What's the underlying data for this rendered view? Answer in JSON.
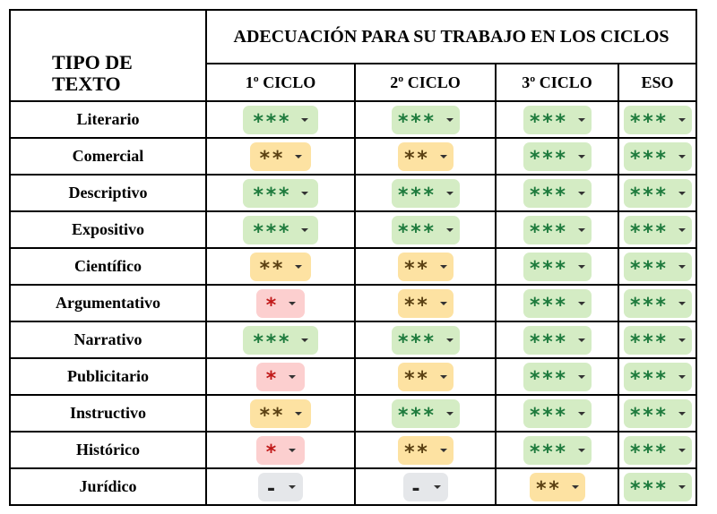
{
  "header": {
    "type_label_line1": "TIPO DE",
    "type_label_line2": "TEXTO",
    "group_title": "ADECUACIÓN PARA SU TRABAJO EN LOS CICLOS",
    "cycles": [
      "1º CICLO",
      "2º CICLO",
      "3º CICLO",
      "ESO"
    ]
  },
  "colors": {
    "level_3_bg": "#d4ecc4",
    "level_2_bg": "#fde2a2",
    "level_1_bg": "#fccfcf",
    "level_0_bg": "#e5e7ea"
  },
  "rows": [
    {
      "type": "Literario",
      "ratings": [
        "***",
        "***",
        "***",
        "***"
      ]
    },
    {
      "type": "Comercial",
      "ratings": [
        "**",
        "**",
        "***",
        "***"
      ]
    },
    {
      "type": "Descriptivo",
      "ratings": [
        "***",
        "***",
        "***",
        "***"
      ]
    },
    {
      "type": "Expositivo",
      "ratings": [
        "***",
        "***",
        "***",
        "***"
      ]
    },
    {
      "type": "Científico",
      "ratings": [
        "**",
        "**",
        "***",
        "***"
      ]
    },
    {
      "type": "Argumentativo",
      "ratings": [
        "*",
        "**",
        "***",
        "***"
      ]
    },
    {
      "type": "Narrativo",
      "ratings": [
        "***",
        "***",
        "***",
        "***"
      ]
    },
    {
      "type": "Publicitario",
      "ratings": [
        "*",
        "**",
        "***",
        "***"
      ]
    },
    {
      "type": "Instructivo",
      "ratings": [
        "**",
        "***",
        "***",
        "***"
      ]
    },
    {
      "type": "Histórico",
      "ratings": [
        "*",
        "**",
        "***",
        "***"
      ]
    },
    {
      "type": "Jurídico",
      "ratings": [
        "-",
        "-",
        "**",
        "***"
      ]
    }
  ]
}
